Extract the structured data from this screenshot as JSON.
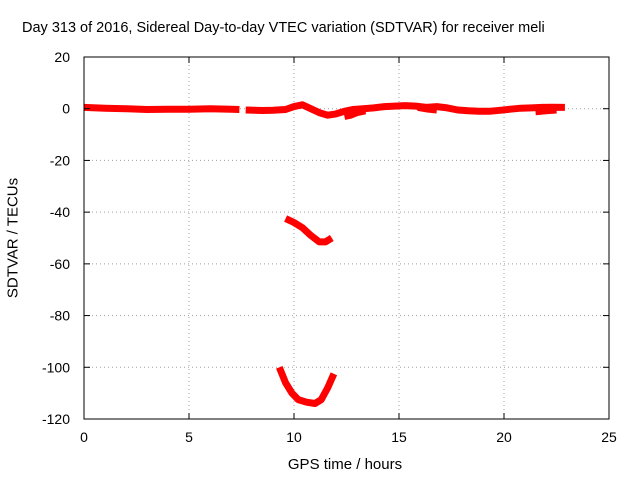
{
  "chart_data": {
    "type": "scatter",
    "title": "Day 313 of 2016, Sidereal Day-to-day VTEC variation (SDTVAR) for receiver meli",
    "xlabel": "GPS time / hours",
    "ylabel": "SDTVAR / TECUs",
    "xlim": [
      0,
      25
    ],
    "ylim": [
      -120,
      20
    ],
    "xticks": [
      0,
      5,
      10,
      15,
      20,
      25
    ],
    "yticks": [
      20,
      0,
      -20,
      -40,
      -60,
      -80,
      -100,
      -120
    ],
    "grid": true,
    "series_color": "#ff0000",
    "segments": [
      [
        [
          0,
          0.5
        ],
        [
          1,
          0.2
        ],
        [
          2,
          0
        ],
        [
          3,
          -0.3
        ],
        [
          4,
          -0.2
        ],
        [
          5,
          -0.2
        ],
        [
          6,
          0
        ],
        [
          7,
          -0.2
        ],
        [
          7.4,
          -0.3
        ]
      ],
      [
        [
          7.7,
          -0.5
        ],
        [
          8.5,
          -0.7
        ],
        [
          9,
          -0.6
        ],
        [
          9.6,
          -0.3
        ],
        [
          10,
          0.8
        ],
        [
          10.4,
          1.5
        ],
        [
          10.8,
          0
        ],
        [
          11.2,
          -1.5
        ],
        [
          11.6,
          -2.5
        ],
        [
          12,
          -2
        ],
        [
          12.4,
          -1
        ],
        [
          12.8,
          -0.3
        ],
        [
          13.3,
          0
        ],
        [
          13.8,
          0.3
        ],
        [
          14.3,
          0.8
        ],
        [
          14.8,
          1
        ],
        [
          15.3,
          1.2
        ],
        [
          15.8,
          1
        ],
        [
          16.3,
          0.5
        ],
        [
          16.8,
          0.8
        ],
        [
          17.3,
          0.3
        ],
        [
          17.8,
          -0.5
        ],
        [
          18.3,
          -0.8
        ],
        [
          18.8,
          -1
        ],
        [
          19.3,
          -1
        ],
        [
          19.8,
          -0.6
        ],
        [
          20.3,
          -0.2
        ],
        [
          20.8,
          0.2
        ],
        [
          21.3,
          0.3
        ],
        [
          21.8,
          0.5
        ],
        [
          22.3,
          0.6
        ],
        [
          22.9,
          0.5
        ]
      ],
      [
        [
          12.4,
          -3
        ],
        [
          12.7,
          -2.5
        ],
        [
          13,
          -1.5
        ],
        [
          13.4,
          -0.8
        ]
      ],
      [
        [
          15.9,
          0.5
        ],
        [
          16.4,
          -0.2
        ],
        [
          16.8,
          -0.5
        ]
      ],
      [
        [
          21.5,
          -1.2
        ],
        [
          22,
          -0.8
        ],
        [
          22.5,
          -0.5
        ]
      ],
      [
        [
          9.6,
          -42.5
        ],
        [
          10,
          -44
        ],
        [
          10.4,
          -46
        ],
        [
          10.8,
          -49
        ],
        [
          11.2,
          -51.5
        ],
        [
          11.5,
          -51.5
        ],
        [
          11.8,
          -50
        ]
      ],
      [
        [
          9.3,
          -100
        ],
        [
          9.6,
          -106
        ],
        [
          9.9,
          -110
        ],
        [
          10.2,
          -112.5
        ],
        [
          10.6,
          -113.5
        ],
        [
          11,
          -114
        ],
        [
          11.3,
          -112.5
        ],
        [
          11.6,
          -108
        ],
        [
          11.9,
          -102.5
        ]
      ]
    ]
  }
}
